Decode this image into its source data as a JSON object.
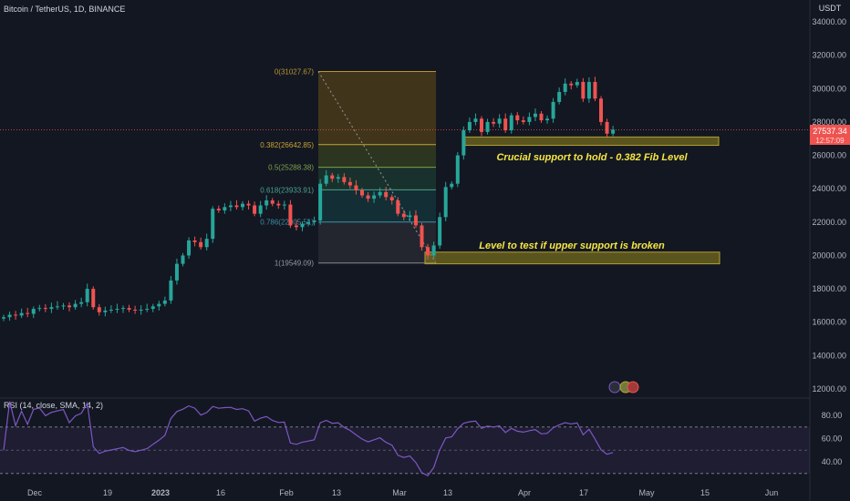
{
  "header": {
    "symbol": "Bitcoin / TetherUS, 1D, BINANCE",
    "currency": "USDT"
  },
  "price_tag": {
    "price": "27537.34",
    "countdown": "12:57:09"
  },
  "rsi": {
    "label": "RSI (14, close, SMA, 14, 2)",
    "ticks": [
      "80.00",
      "60.00",
      "40.00"
    ],
    "upper": 70,
    "lower": 30
  },
  "x_labels": [
    "Dec",
    "19",
    "2023",
    "16",
    "Feb",
    "13",
    "Mar",
    "13",
    "Apr",
    "17",
    "May",
    "15",
    "Jun"
  ],
  "annotations": {
    "support_note": "Crucial support to hold - 0.382 Fib Level",
    "test_note": "Level to test if upper support is broken"
  },
  "colors": {
    "up": "#26a69a",
    "down": "#ef5350",
    "bg": "#131722",
    "annotation": "#f5e642",
    "zone": "#8a7a1a",
    "rsi_line": "#7e57c2"
  },
  "chart_data": {
    "type": "candlestick",
    "title": "Bitcoin / TetherUS, 1D, BINANCE",
    "ylim": [
      11500,
      35000
    ],
    "y_ticks": [
      "12000.00",
      "14000.00",
      "16000.00",
      "18000.00",
      "20000.00",
      "22000.00",
      "24000.00",
      "26000.00",
      "28000.00",
      "30000.00",
      "32000.00",
      "34000.00"
    ],
    "fib_levels": [
      {
        "label": "0(31027.67)",
        "value": 31027.67
      },
      {
        "label": "0.382(26642.85)",
        "value": 26642.85
      },
      {
        "label": "0.5(25288.38)",
        "value": 25288.38
      },
      {
        "label": "0.618(23933.91)",
        "value": 23933.91
      },
      {
        "label": "0.786(22005.51)",
        "value": 22005.51
      },
      {
        "label": "1(19549.09)",
        "value": 19549.09
      }
    ],
    "zones": [
      {
        "name": "upper-support",
        "low": 26600,
        "high": 27100
      },
      {
        "name": "lower-support",
        "low": 19500,
        "high": 20200
      }
    ],
    "close_series": [
      16300,
      16450,
      16400,
      16550,
      16500,
      16800,
      16850,
      16800,
      16900,
      16950,
      17000,
      16900,
      17100,
      17200,
      18000,
      16900,
      16600,
      16700,
      16750,
      16800,
      16850,
      16750,
      16700,
      16750,
      16800,
      16950,
      17100,
      17300,
      18500,
      19500,
      20000,
      20900,
      20800,
      20500,
      21000,
      22800,
      22700,
      22900,
      23000,
      22900,
      23100,
      23000,
      22500,
      23000,
      23300,
      23100,
      23000,
      23050,
      21800,
      21700,
      21900,
      22000,
      22100,
      24300,
      24800,
      24600,
      24700,
      24400,
      24200,
      23900,
      23600,
      23400,
      23600,
      23800,
      23500,
      23300,
      22500,
      22300,
      22400,
      21800,
      20500,
      20000,
      20600,
      22300,
      24100,
      24300,
      26000,
      27500,
      28000,
      28200,
      27400,
      28000,
      27900,
      28200,
      27500,
      28400,
      28100,
      28000,
      28300,
      28500,
      28100,
      28200,
      29200,
      29800,
      30300,
      30200,
      30400,
      29400,
      30400,
      29400,
      28000,
      27300,
      27537
    ]
  }
}
